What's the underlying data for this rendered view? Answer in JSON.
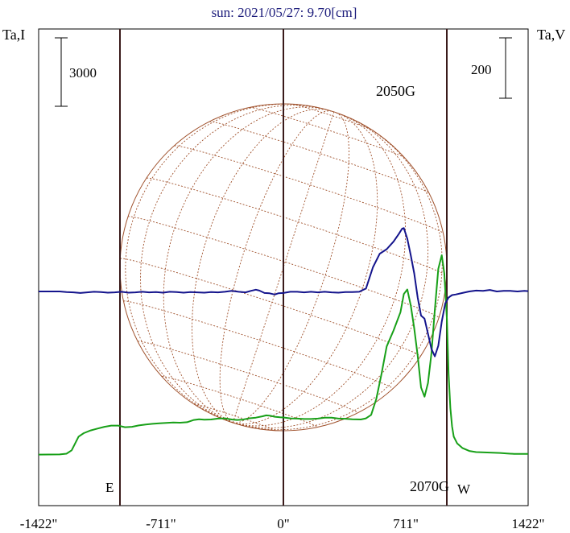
{
  "title": "sun: 2021/05/27: 9.70[cm]",
  "chart_data": {
    "type": "line",
    "title": "sun: 2021/05/27: 9.70[cm]",
    "ylabel_left": "Ta,I",
    "ylabel_right": "Ta,V",
    "xlim": [
      -1422,
      1422
    ],
    "x_tick_labels": [
      "-1422\"",
      "-711\"",
      "0\"",
      "711\"",
      "1422\""
    ],
    "x_ticks": [
      -1422,
      -711,
      0,
      711,
      1422
    ],
    "scale_bar_left": "3000",
    "scale_bar_right": "200",
    "markers": {
      "east": "E",
      "west": "W"
    },
    "annotations": [
      {
        "text": "2050G",
        "x": 711
      },
      {
        "text": "2070G",
        "x": 880
      }
    ],
    "series": [
      {
        "name": "Ta,I",
        "color": "#18a018",
        "points": [
          [
            -1422,
            -940
          ],
          [
            -1300,
            -930
          ],
          [
            -1260,
            -900
          ],
          [
            -1230,
            -750
          ],
          [
            -1210,
            -450
          ],
          [
            -1190,
            -150
          ],
          [
            -1160,
            0
          ],
          [
            -1120,
            120
          ],
          [
            -1080,
            200
          ],
          [
            -1040,
            280
          ],
          [
            -1000,
            330
          ],
          [
            -960,
            330
          ],
          [
            -920,
            260
          ],
          [
            -880,
            280
          ],
          [
            -840,
            340
          ],
          [
            -800,
            380
          ],
          [
            -760,
            410
          ],
          [
            -720,
            430
          ],
          [
            -680,
            450
          ],
          [
            -640,
            470
          ],
          [
            -600,
            460
          ],
          [
            -560,
            480
          ],
          [
            -520,
            580
          ],
          [
            -490,
            610
          ],
          [
            -460,
            590
          ],
          [
            -420,
            600
          ],
          [
            -380,
            640
          ],
          [
            -340,
            650
          ],
          [
            -300,
            600
          ],
          [
            -270,
            580
          ],
          [
            -240,
            590
          ],
          [
            -200,
            650
          ],
          [
            -160,
            680
          ],
          [
            -120,
            740
          ],
          [
            -100,
            780
          ],
          [
            -80,
            770
          ],
          [
            -50,
            720
          ],
          [
            -20,
            700
          ],
          [
            0,
            690
          ],
          [
            40,
            650
          ],
          [
            80,
            640
          ],
          [
            120,
            620
          ],
          [
            160,
            620
          ],
          [
            200,
            640
          ],
          [
            240,
            680
          ],
          [
            280,
            680
          ],
          [
            320,
            640
          ],
          [
            360,
            630
          ],
          [
            400,
            610
          ],
          [
            450,
            600
          ],
          [
            480,
            650
          ],
          [
            510,
            800
          ],
          [
            540,
            1500
          ],
          [
            570,
            2600
          ],
          [
            600,
            3800
          ],
          [
            640,
            4500
          ],
          [
            680,
            5300
          ],
          [
            700,
            6100
          ],
          [
            720,
            6300
          ],
          [
            740,
            5600
          ],
          [
            760,
            4600
          ],
          [
            780,
            3400
          ],
          [
            800,
            2000
          ],
          [
            820,
            1600
          ],
          [
            840,
            2200
          ],
          [
            860,
            3500
          ],
          [
            880,
            5400
          ],
          [
            900,
            7200
          ],
          [
            920,
            7800
          ],
          [
            935,
            7000
          ],
          [
            950,
            5000
          ],
          [
            960,
            2600
          ],
          [
            970,
            1100
          ],
          [
            980,
            300
          ],
          [
            990,
            -150
          ],
          [
            1010,
            -450
          ],
          [
            1040,
            -650
          ],
          [
            1080,
            -780
          ],
          [
            1120,
            -830
          ],
          [
            1200,
            -850
          ],
          [
            1260,
            -870
          ],
          [
            1300,
            -890
          ],
          [
            1340,
            -910
          ],
          [
            1380,
            -910
          ],
          [
            1422,
            -910
          ]
        ]
      },
      {
        "name": "Ta,V",
        "color": "#14148c",
        "points": [
          [
            -1422,
            0
          ],
          [
            -1300,
            0
          ],
          [
            -1260,
            -2
          ],
          [
            -1220,
            -3
          ],
          [
            -1180,
            -5
          ],
          [
            -1140,
            -3
          ],
          [
            -1100,
            -1
          ],
          [
            -1060,
            -2
          ],
          [
            -1020,
            -4
          ],
          [
            -980,
            -3
          ],
          [
            -940,
            -1
          ],
          [
            -900,
            -4
          ],
          [
            -860,
            -3
          ],
          [
            -820,
            -1
          ],
          [
            -780,
            -3
          ],
          [
            -740,
            -2
          ],
          [
            -700,
            -4
          ],
          [
            -660,
            -1
          ],
          [
            -620,
            -2
          ],
          [
            -580,
            -4
          ],
          [
            -540,
            -2
          ],
          [
            -500,
            -3
          ],
          [
            -460,
            -4
          ],
          [
            -420,
            -2
          ],
          [
            -380,
            -3
          ],
          [
            -340,
            -1
          ],
          [
            -300,
            2
          ],
          [
            -260,
            -1
          ],
          [
            -220,
            -3
          ],
          [
            -190,
            2
          ],
          [
            -160,
            6
          ],
          [
            -140,
            3
          ],
          [
            -110,
            -5
          ],
          [
            -80,
            -6
          ],
          [
            -50,
            -10
          ],
          [
            -30,
            -6
          ],
          [
            0,
            -5
          ],
          [
            40,
            -1
          ],
          [
            80,
            -1
          ],
          [
            120,
            -3
          ],
          [
            160,
            -1
          ],
          [
            200,
            -3
          ],
          [
            240,
            -1
          ],
          [
            280,
            -3
          ],
          [
            320,
            -4
          ],
          [
            360,
            -2
          ],
          [
            400,
            -2
          ],
          [
            440,
            -1
          ],
          [
            480,
            10
          ],
          [
            520,
            80
          ],
          [
            560,
            125
          ],
          [
            600,
            140
          ],
          [
            640,
            165
          ],
          [
            670,
            190
          ],
          [
            690,
            208
          ],
          [
            700,
            210
          ],
          [
            720,
            175
          ],
          [
            740,
            120
          ],
          [
            760,
            60
          ],
          [
            780,
            -20
          ],
          [
            800,
            -80
          ],
          [
            820,
            -90
          ],
          [
            840,
            -140
          ],
          [
            860,
            -190
          ],
          [
            880,
            -215
          ],
          [
            900,
            -180
          ],
          [
            920,
            -100
          ],
          [
            940,
            -40
          ],
          [
            960,
            -20
          ],
          [
            980,
            -12
          ],
          [
            1000,
            -10
          ],
          [
            1040,
            -5
          ],
          [
            1080,
            0
          ],
          [
            1120,
            3
          ],
          [
            1160,
            2
          ],
          [
            1200,
            5
          ],
          [
            1240,
            0
          ],
          [
            1280,
            2
          ],
          [
            1320,
            2
          ],
          [
            1360,
            0
          ],
          [
            1400,
            2
          ],
          [
            1422,
            1
          ]
        ]
      }
    ]
  }
}
